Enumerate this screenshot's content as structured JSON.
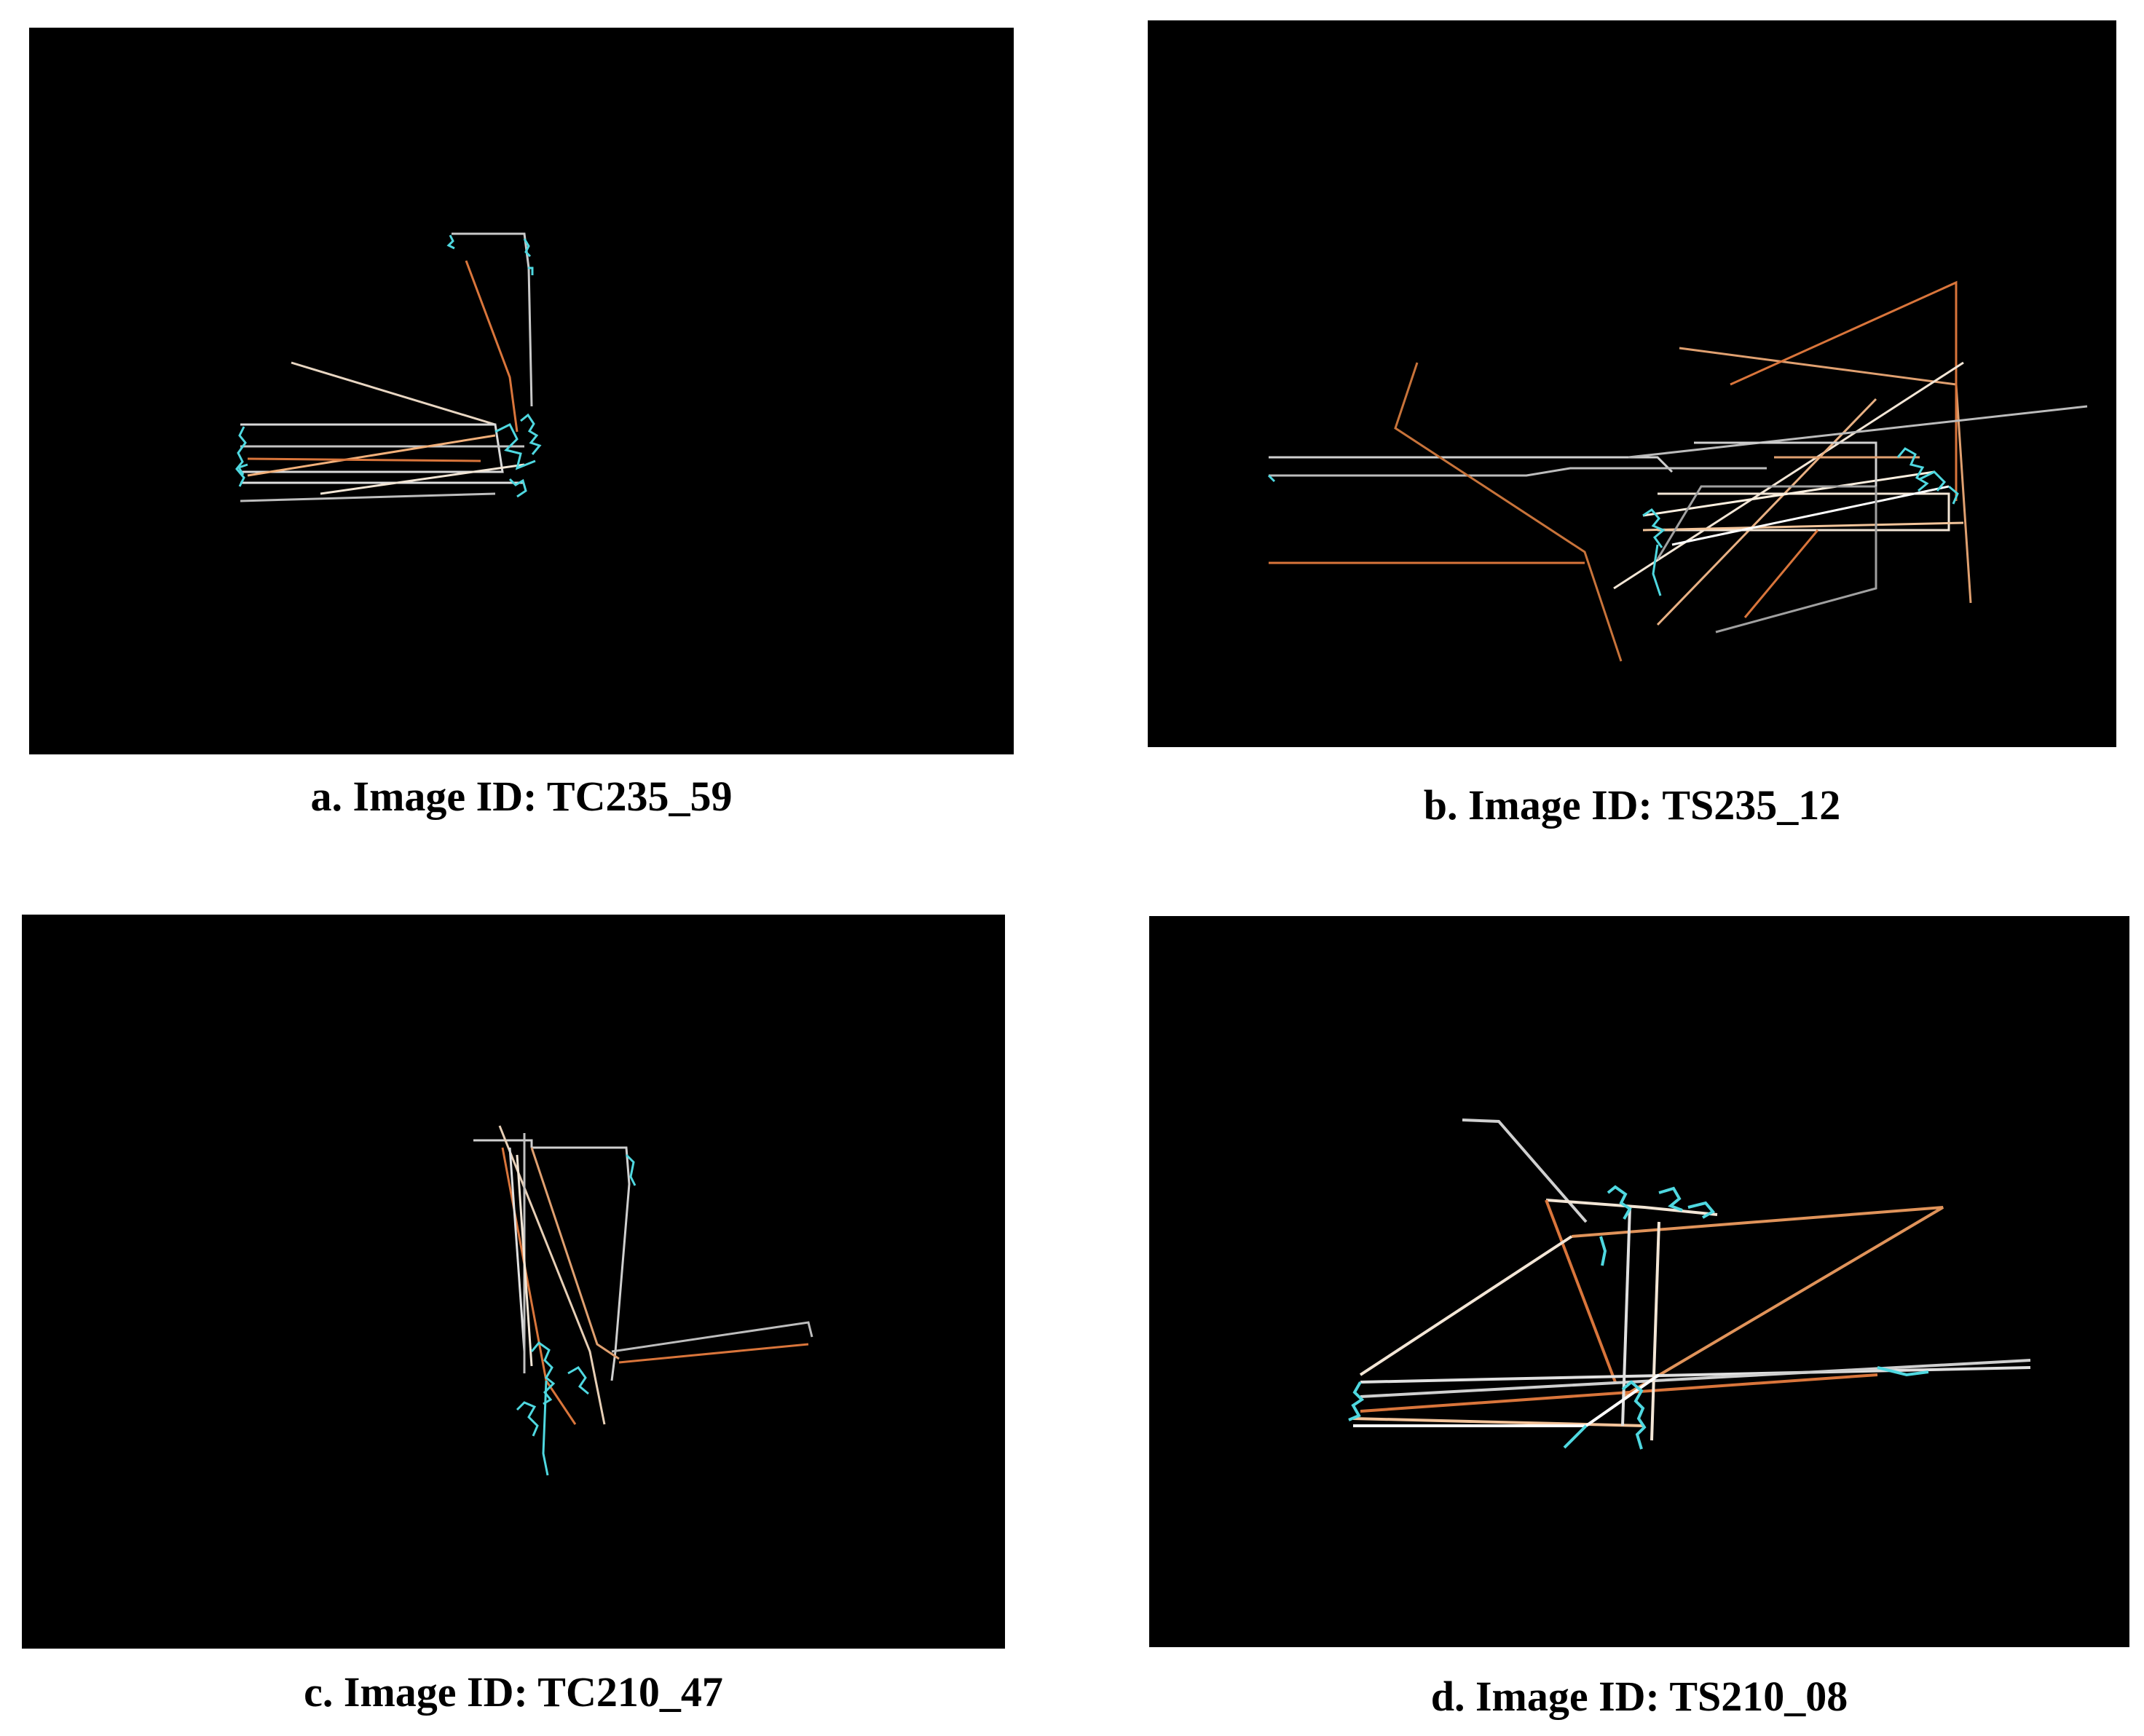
{
  "figure": {
    "panels": [
      {
        "id": "a",
        "caption": "a. Image ID: TC235_59"
      },
      {
        "id": "b",
        "caption": "b. Image ID: TS235_12"
      },
      {
        "id": "c",
        "caption": "c. Image ID: TC210_47"
      },
      {
        "id": "d",
        "caption": "d. Image ID: TS210_08"
      }
    ],
    "colors": {
      "background": "#000000",
      "fixation": "#4fd8e0",
      "saccade_warm": "#d9753b",
      "saccade_light": "#f3e6d6"
    }
  }
}
